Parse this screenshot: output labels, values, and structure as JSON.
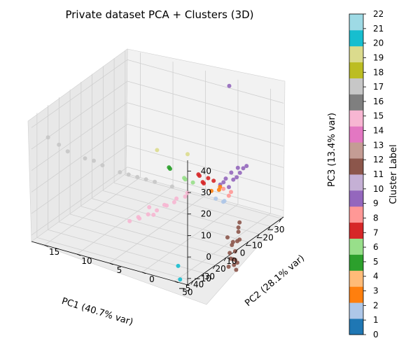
{
  "chart_data": {
    "type": "scatter",
    "projection": "3d",
    "title": "Private dataset PCA + Clusters (3D)",
    "xlabel": "PC1 (40.7% var)",
    "ylabel": "PC2 (28.1% var)",
    "zlabel": "PC3 (13.4% var)",
    "xticks": [
      -30,
      -20,
      -10,
      0,
      10,
      20,
      30,
      40,
      50
    ],
    "yticks": [
      -5,
      0,
      5,
      10,
      15
    ],
    "zticks": [
      -10,
      0,
      10,
      20,
      30,
      40
    ],
    "xlim": [
      -32,
      55
    ],
    "ylim": [
      -7,
      17
    ],
    "zlim": [
      -13,
      45
    ],
    "grid": true,
    "colorbar": {
      "label": "Cluster Label",
      "ticks": [
        0,
        1,
        2,
        3,
        4,
        5,
        6,
        7,
        8,
        9,
        10,
        11,
        12,
        13,
        14,
        15,
        16,
        17,
        18,
        19,
        20,
        21,
        22
      ],
      "colors": [
        "#1f77b4",
        "#aec7e8",
        "#ff7f0e",
        "#ffbb78",
        "#2ca02c",
        "#98df8a",
        "#d62728",
        "#ff9896",
        "#9467bd",
        "#c5b0d5",
        "#8c564b",
        "#c49c94",
        "#e377c2",
        "#f7b6d2",
        "#7f7f7f",
        "#c7c7c7",
        "#bcbd22",
        "#dbdb8d",
        "#17becf",
        "#9edae5"
      ]
    },
    "point_size": 6,
    "point_opacity": 0.9,
    "clusters": [
      {
        "label": 9,
        "color": "#9467bd",
        "points": [
          [
            -28,
            -2,
            8
          ],
          [
            -25,
            -2,
            8
          ],
          [
            -22,
            -2,
            7
          ],
          [
            -19,
            -2,
            6
          ],
          [
            -16,
            -2,
            6
          ],
          [
            -13,
            -1,
            5
          ],
          [
            -10,
            -1,
            5
          ],
          [
            -26,
            -1,
            7
          ],
          [
            -20,
            -1,
            7
          ],
          [
            -15,
            -1,
            6
          ],
          [
            -30,
            1,
            42
          ],
          [
            -12,
            -2,
            4
          ]
        ]
      },
      {
        "label": 11,
        "color": "#8c564b",
        "points": [
          [
            2,
            -6,
            -4
          ],
          [
            3,
            -6,
            -8
          ],
          [
            4,
            -6,
            -12
          ],
          [
            3,
            -5,
            -15
          ],
          [
            5,
            -5,
            -18
          ],
          [
            6,
            -6,
            -20
          ],
          [
            4,
            -6,
            -22
          ],
          [
            6,
            -5,
            -24
          ],
          [
            5,
            -6,
            -25
          ],
          [
            7,
            -5,
            -10
          ],
          [
            2,
            -5,
            -14
          ],
          [
            8,
            -6,
            -19
          ],
          [
            3,
            -6,
            -6
          ],
          [
            7,
            -6,
            -22
          ],
          [
            4,
            -5,
            -21
          ],
          [
            6,
            -6,
            -16
          ],
          [
            2,
            -6,
            -12
          ]
        ]
      },
      {
        "label": 15,
        "color": "#f7b6d2",
        "points": [
          [
            8,
            1,
            6
          ],
          [
            12,
            2,
            4
          ],
          [
            15,
            3,
            1
          ],
          [
            18,
            4,
            -1
          ],
          [
            20,
            5,
            -3
          ],
          [
            22,
            6,
            -5
          ],
          [
            25,
            7,
            -6
          ],
          [
            17,
            3,
            2
          ],
          [
            14,
            2,
            3
          ],
          [
            23,
            6,
            -4
          ],
          [
            19,
            5,
            0
          ],
          [
            21,
            4,
            -2
          ],
          [
            10,
            1,
            5
          ]
        ]
      },
      {
        "label": 17,
        "color": "#c7c7c7",
        "points": [
          [
            10,
            3,
            8
          ],
          [
            14,
            5,
            10
          ],
          [
            18,
            7,
            12
          ],
          [
            22,
            9,
            14
          ],
          [
            26,
            11,
            17
          ],
          [
            30,
            13,
            20
          ],
          [
            34,
            15,
            23
          ],
          [
            36,
            16,
            26
          ],
          [
            20,
            8,
            13
          ],
          [
            16,
            6,
            11
          ],
          [
            28,
            12,
            19
          ],
          [
            40,
            17,
            30
          ]
        ]
      },
      {
        "label": 7,
        "color": "#d62728",
        "points": [
          [
            -5,
            0,
            9
          ],
          [
            -3,
            1,
            10
          ],
          [
            -1,
            0,
            8
          ],
          [
            -4,
            -1,
            9
          ],
          [
            -2,
            1,
            11
          ],
          [
            0,
            0,
            9
          ]
        ]
      },
      {
        "label": 3,
        "color": "#ff9896",
        "points": [
          [
            -8,
            -3,
            4
          ],
          [
            -6,
            -3,
            3
          ],
          [
            -7,
            -2,
            5
          ]
        ]
      },
      {
        "label": 5,
        "color": "#98df8a",
        "points": [
          [
            4,
            2,
            10
          ],
          [
            5,
            2,
            11
          ],
          [
            3,
            1,
            9
          ]
        ]
      },
      {
        "label": 4,
        "color": "#2ca02c",
        "points": [
          [
            6,
            4,
            14
          ],
          [
            7,
            4,
            15
          ]
        ]
      },
      {
        "label": 2,
        "color": "#ff7f0e",
        "points": [
          [
            -4,
            -2,
            7
          ],
          [
            -3,
            -2,
            6
          ],
          [
            -2,
            -1,
            5
          ]
        ]
      },
      {
        "label": 1,
        "color": "#aec7e8",
        "points": [
          [
            -2,
            -3,
            2
          ],
          [
            -1,
            -3,
            2
          ],
          [
            0,
            -2,
            3
          ]
        ]
      },
      {
        "label": 19,
        "color": "#dbdb8d",
        "points": [
          [
            -4,
            3,
            18
          ],
          [
            6,
            6,
            21
          ]
        ]
      },
      {
        "label": 20,
        "color": "#17becf",
        "points": [
          [
            40,
            -3,
            -13
          ],
          [
            50,
            -5,
            -14
          ]
        ]
      }
    ]
  }
}
